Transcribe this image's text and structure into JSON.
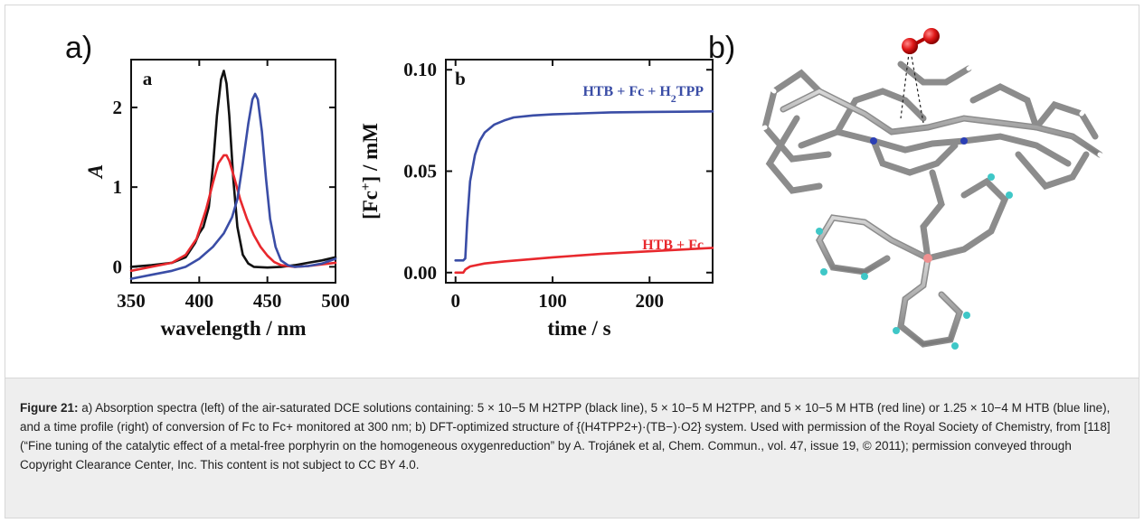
{
  "figure": {
    "panel_a_label": "a)",
    "panel_b_label": "b)"
  },
  "caption": {
    "figure_label": "Figure 21:",
    "text": " a) Absorption spectra (left) of the air-saturated DCE solutions containing: 5 × 10−5 M H2TPP (black line), 5 × 10−5 M H2TPP, and 5 × 10−5 M HTB (red line) or 1.25 × 10−4 M HTB (blue line), and a time profile (right) of conversion of Fc to Fc+ monitored at 300 nm; b) DFT-optimized structure of {(H4TPP2+)·(TB−)·O2} system. Used with permission of the Royal Society of Chemistry, from [118] (“Fine tuning of the catalytic effect of a metal-free porphyrin on the homogeneous oxygenreduction” by A. Trojánek et al, Chem. Commun., vol. 47, issue 19, © 2011); permission conveyed through Copyright Clearance Center, Inc. This content is not subject to CC BY 4.0."
  },
  "chart_data": [
    {
      "type": "line",
      "panel_label": "a",
      "xlabel": "wavelength / nm",
      "ylabel": "A",
      "xlim": [
        350,
        500
      ],
      "ylim": [
        -0.2,
        2.6
      ],
      "x_ticks": [
        350,
        400,
        450,
        500
      ],
      "y_ticks": [
        0,
        1,
        2
      ],
      "grid": false,
      "series": [
        {
          "color": "#111111",
          "x": [
            350,
            365,
            380,
            390,
            397,
            400,
            403,
            407,
            410,
            413,
            416,
            418,
            420,
            422,
            425,
            428,
            432,
            436,
            440,
            450,
            460,
            470,
            480,
            490,
            500
          ],
          "y": [
            0.0,
            0.02,
            0.05,
            0.12,
            0.3,
            0.42,
            0.5,
            0.75,
            1.25,
            1.9,
            2.35,
            2.46,
            2.3,
            1.9,
            1.1,
            0.5,
            0.15,
            0.04,
            0.0,
            -0.01,
            0.0,
            0.02,
            0.05,
            0.08,
            0.12
          ]
        },
        {
          "color": "#e8282d",
          "x": [
            350,
            365,
            380,
            390,
            398,
            405,
            410,
            414,
            418,
            420,
            422,
            426,
            430,
            435,
            440,
            445,
            450,
            455,
            460,
            470,
            480,
            490,
            500
          ],
          "y": [
            -0.05,
            0.0,
            0.05,
            0.15,
            0.35,
            0.72,
            1.05,
            1.3,
            1.4,
            1.4,
            1.33,
            1.1,
            0.85,
            0.6,
            0.4,
            0.25,
            0.14,
            0.06,
            0.02,
            0.0,
            0.01,
            0.03,
            0.05
          ]
        },
        {
          "color": "#3a4da6",
          "x": [
            350,
            365,
            380,
            390,
            400,
            410,
            418,
            424,
            428,
            432,
            436,
            439,
            441,
            443,
            446,
            449,
            452,
            456,
            460,
            465,
            470,
            480,
            490,
            500
          ],
          "y": [
            -0.15,
            -0.1,
            -0.05,
            0.0,
            0.1,
            0.25,
            0.42,
            0.62,
            0.85,
            1.3,
            1.8,
            2.1,
            2.17,
            2.1,
            1.7,
            1.1,
            0.6,
            0.25,
            0.08,
            0.02,
            0.0,
            0.01,
            0.04,
            0.1
          ]
        }
      ]
    },
    {
      "type": "line",
      "panel_label": "b",
      "xlabel": "time / s",
      "ylabel": "[Fc+] / mM",
      "ylabel_main": "[Fc",
      "ylabel_sup": "+",
      "ylabel_tail": "] / mM",
      "xlim": [
        -10,
        265
      ],
      "ylim": [
        -0.005,
        0.105
      ],
      "x_ticks": [
        0,
        100,
        200
      ],
      "y_ticks": [
        "0.00",
        "0.05",
        "0.10"
      ],
      "grid": false,
      "series": [
        {
          "name": "HTB + Fc + H2TPP",
          "label_main": "HTB + Fc + H",
          "label_sub": "2",
          "label_tail": "TPP",
          "color": "#3a4da6",
          "x": [
            0,
            8,
            10,
            12,
            15,
            20,
            25,
            30,
            40,
            50,
            60,
            80,
            100,
            130,
            160,
            200,
            230,
            265
          ],
          "y": [
            0.006,
            0.006,
            0.007,
            0.025,
            0.045,
            0.058,
            0.065,
            0.069,
            0.073,
            0.075,
            0.0765,
            0.0775,
            0.078,
            0.0785,
            0.079,
            0.0792,
            0.0793,
            0.0795
          ]
        },
        {
          "name": "HTB + Fc",
          "color": "#e8282d",
          "x": [
            0,
            8,
            10,
            15,
            20,
            30,
            50,
            100,
            150,
            200,
            265
          ],
          "y": [
            0.0,
            0.0,
            0.0015,
            0.003,
            0.0035,
            0.0045,
            0.0055,
            0.0075,
            0.0092,
            0.0105,
            0.0122
          ]
        }
      ]
    }
  ]
}
